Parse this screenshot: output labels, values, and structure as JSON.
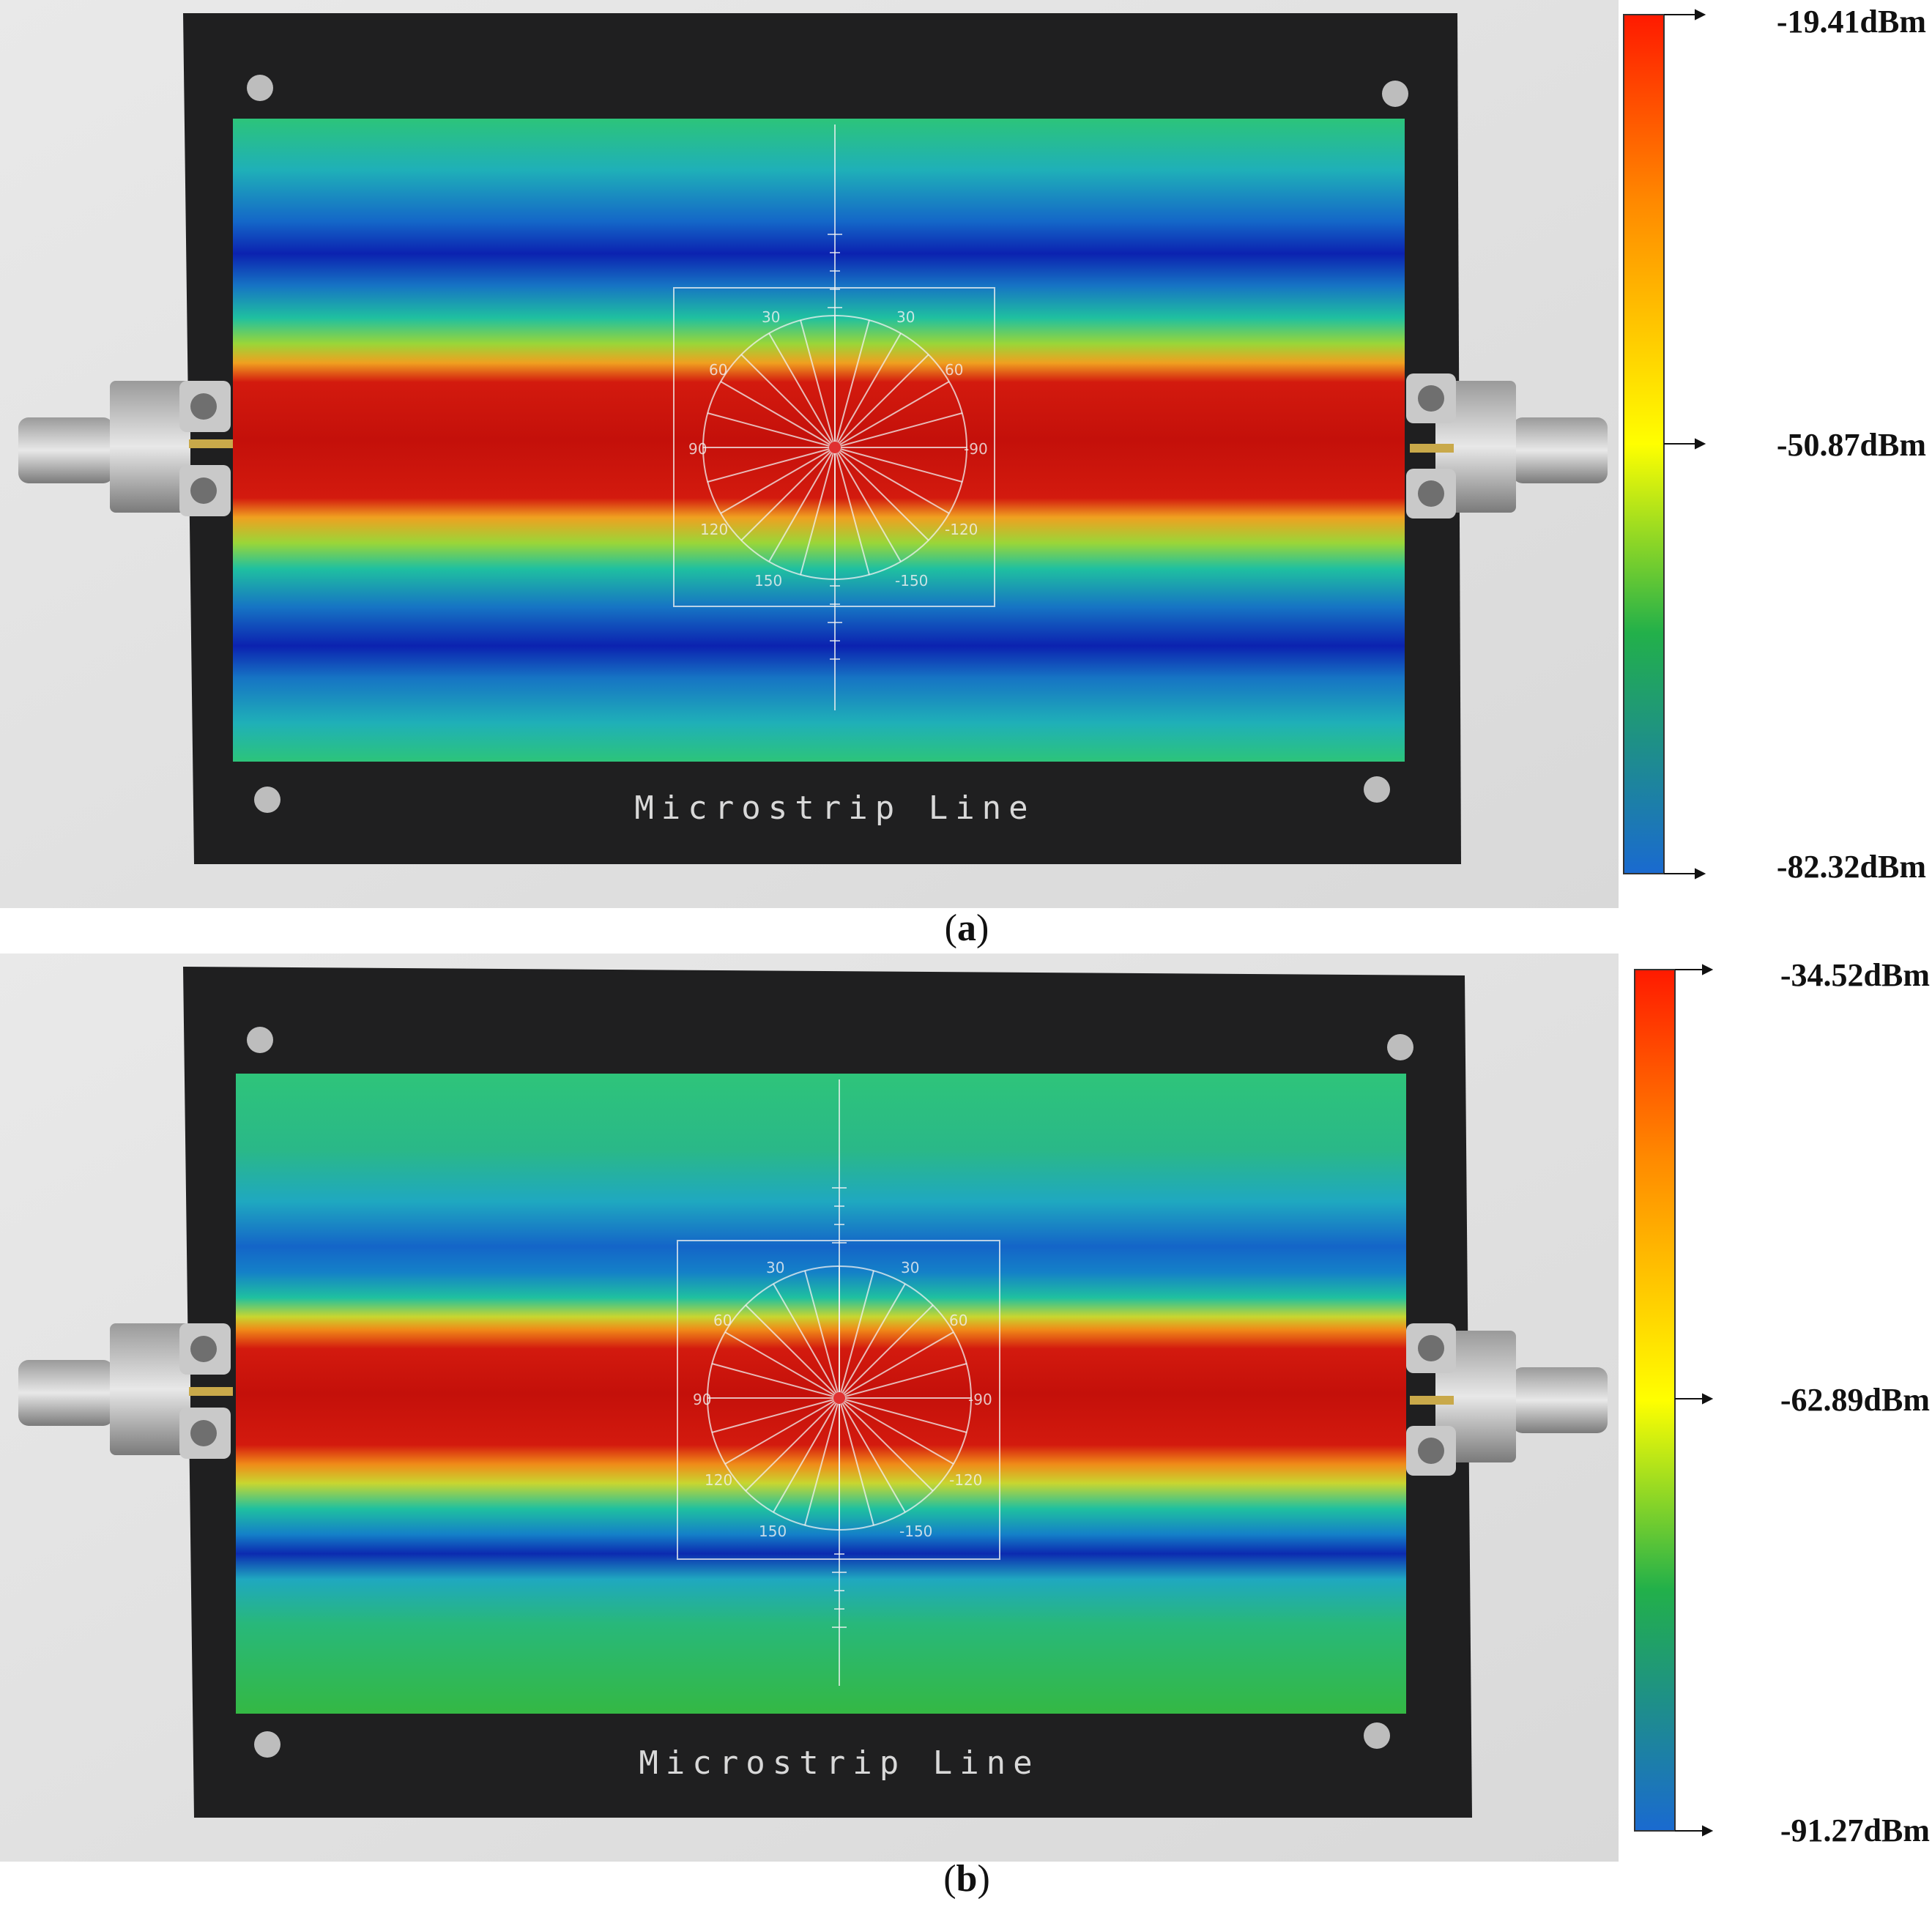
{
  "panels": [
    {
      "id": "a",
      "label_letter": "a",
      "board_label": "Microstrip Line",
      "colorbar": {
        "max_label": "-19.41dBm",
        "mid_label": "-50.87dBm",
        "min_label": "-82.32dBm",
        "max_value": -19.41,
        "mid_value": -50.87,
        "min_value": -82.32
      },
      "reticle_angles": [
        "30",
        "60",
        "90",
        "120",
        "150",
        "30",
        "60",
        "-90",
        "-120",
        "-150"
      ]
    },
    {
      "id": "b",
      "label_letter": "b",
      "board_label": "Microstrip Line",
      "colorbar": {
        "max_label": "-34.52dBm",
        "mid_label": "-62.89dBm",
        "min_label": "-91.27dBm",
        "max_value": -34.52,
        "mid_value": -62.89,
        "min_value": -91.27
      },
      "reticle_angles": [
        "30",
        "60",
        "90",
        "120",
        "150",
        "30",
        "60",
        "-90",
        "-120",
        "-150"
      ]
    }
  ],
  "colors": {
    "board": "#1f1f20",
    "jet_low": "#1a73b8",
    "jet_mid": "#ffff00",
    "jet_high": "#ff1a00"
  }
}
